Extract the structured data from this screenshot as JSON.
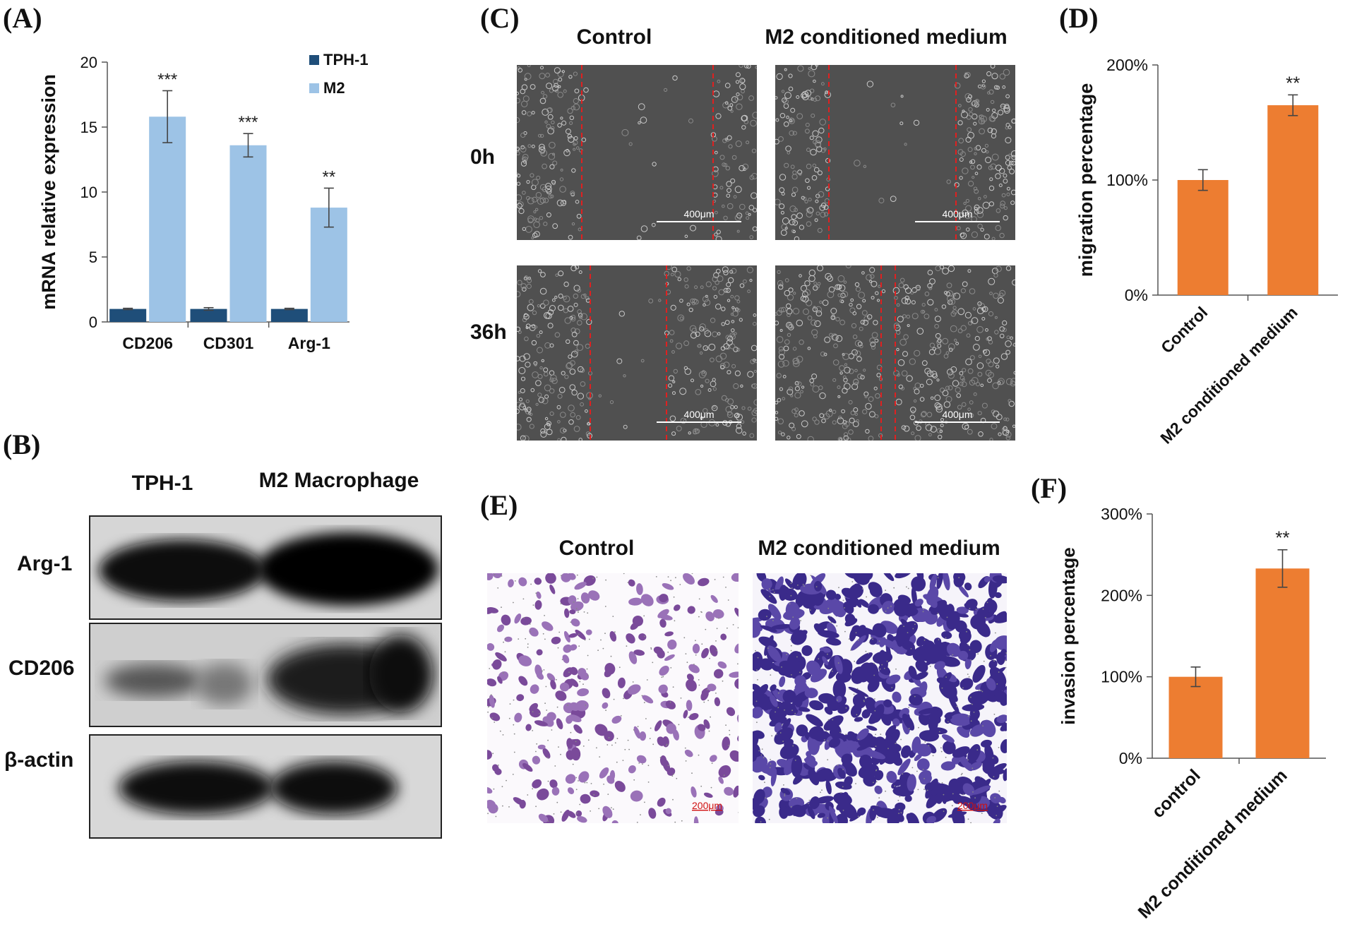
{
  "panels": {
    "A": {
      "label": "(A)"
    },
    "B": {
      "label": "(B)",
      "col_headers": [
        "TPH-1",
        "M2 Macrophage"
      ],
      "row_labels": [
        "Arg-1",
        "CD206",
        "β-actin"
      ]
    },
    "C": {
      "label": "(C)",
      "col_headers": [
        "Control",
        "M2 conditioned medium"
      ],
      "row_labels": [
        "0h",
        "36h"
      ],
      "scale": "400μm"
    },
    "D": {
      "label": "(D)"
    },
    "E": {
      "label": "(E)",
      "col_headers": [
        "Control",
        "M2 conditioned medium"
      ],
      "scale": "200μm"
    },
    "F": {
      "label": "(F)"
    }
  },
  "chart_data": [
    {
      "id": "A",
      "type": "bar",
      "ylabel": "mRNA  relative expression",
      "xlabel": "",
      "categories": [
        "CD206",
        "CD301",
        "Arg-1"
      ],
      "ylim": [
        0,
        20
      ],
      "yticks": [
        "0",
        "5",
        "10",
        "15",
        "20"
      ],
      "legend_position": "top-right",
      "series": [
        {
          "name": "TPH-1",
          "color": "#1f4e79",
          "values": [
            1.0,
            1.0,
            1.0
          ],
          "errors": [
            0.05,
            0.1,
            0.05
          ]
        },
        {
          "name": "M2",
          "color": "#9dc3e6",
          "values": [
            15.8,
            13.6,
            8.8
          ],
          "errors": [
            2.0,
            0.9,
            1.5
          ]
        }
      ],
      "annotations": [
        "***",
        "***",
        "**"
      ]
    },
    {
      "id": "D",
      "type": "bar",
      "ylabel": "migration percentage",
      "xlabel": "",
      "categories": [
        "Control",
        "M2 conditioned medium"
      ],
      "ylim": [
        0,
        200
      ],
      "yticks": [
        "0%",
        "100%",
        "200%"
      ],
      "series": [
        {
          "color": "#ed7d31",
          "values": [
            100,
            165
          ],
          "errors": [
            9,
            9
          ]
        }
      ],
      "annotations": [
        "",
        "**"
      ]
    },
    {
      "id": "F",
      "type": "bar",
      "ylabel": "invasion percentage",
      "xlabel": "",
      "categories": [
        "control",
        "M2 conditioned medium"
      ],
      "ylim": [
        0,
        300
      ],
      "yticks": [
        "0%",
        "100%",
        "200%",
        "300%"
      ],
      "series": [
        {
          "color": "#ed7d31",
          "values": [
            100,
            233
          ],
          "errors": [
            12,
            23
          ]
        }
      ],
      "annotations": [
        "",
        "**"
      ]
    }
  ]
}
